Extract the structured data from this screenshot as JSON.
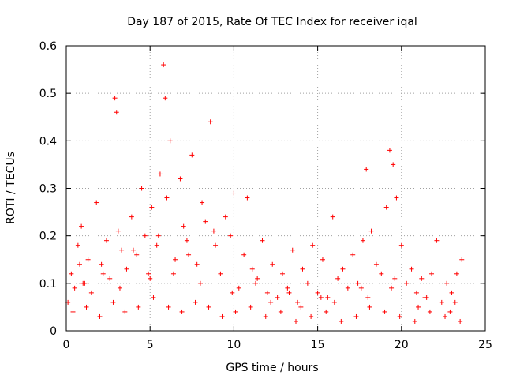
{
  "chart_data": {
    "type": "scatter",
    "title": "Day 187 of 2015, Rate Of TEC Index for receiver iqal",
    "xlabel": "GPS time / hours",
    "ylabel": "ROTI / TECUs",
    "xlim": [
      0,
      25
    ],
    "ylim": [
      0,
      0.6
    ],
    "xticks": [
      0,
      5,
      10,
      15,
      20,
      25
    ],
    "xtick_labels": [
      "0",
      "5",
      "10",
      "15",
      "20",
      "25"
    ],
    "yticks": [
      0,
      0.1,
      0.2,
      0.3,
      0.4,
      0.5,
      0.6
    ],
    "ytick_labels": [
      "0",
      "0.1",
      "0.2",
      "0.3",
      "0.4",
      "0.5",
      "0.6"
    ],
    "grid": true,
    "marker": "+",
    "color": "#ff0000",
    "series": [
      {
        "name": "ROTI",
        "x": [
          0.1,
          0.3,
          0.5,
          0.7,
          0.9,
          1.1,
          1.3,
          1.5,
          1.8,
          2.1,
          2.4,
          2.6,
          2.9,
          3.0,
          3.1,
          3.3,
          3.6,
          3.9,
          4.2,
          4.5,
          4.7,
          4.9,
          5.1,
          5.4,
          5.6,
          5.8,
          5.9,
          6.0,
          6.2,
          6.5,
          6.8,
          7.0,
          7.2,
          7.5,
          7.8,
          8.1,
          8.3,
          8.6,
          8.9,
          9.2,
          9.5,
          9.8,
          10.0,
          10.3,
          10.6,
          10.8,
          11.1,
          11.4,
          11.7,
          12.0,
          12.3,
          12.6,
          12.9,
          13.2,
          13.5,
          13.8,
          14.1,
          14.4,
          14.7,
          15.0,
          15.3,
          15.6,
          15.9,
          16.2,
          16.5,
          16.8,
          17.1,
          17.4,
          17.7,
          17.9,
          18.2,
          18.5,
          18.8,
          19.1,
          19.3,
          19.5,
          19.7,
          20.0,
          20.3,
          20.6,
          20.9,
          21.2,
          21.5,
          21.8,
          22.1,
          22.4,
          22.7,
          23.0,
          23.3,
          23.6,
          0.4,
          1.2,
          2.0,
          2.8,
          3.5,
          4.3,
          5.2,
          6.1,
          6.9,
          7.7,
          8.5,
          9.3,
          10.1,
          11.0,
          11.9,
          12.8,
          13.7,
          14.6,
          15.5,
          16.4,
          17.3,
          18.1,
          19.0,
          19.9,
          20.8,
          21.7,
          22.6,
          23.5,
          1.0,
          3.2,
          5.0,
          6.4,
          8.0,
          9.9,
          12.2,
          14.0,
          16.0,
          18.0,
          19.4,
          21.0,
          22.9,
          0.8,
          2.2,
          4.0,
          5.5,
          7.3,
          8.8,
          11.3,
          13.3,
          15.2,
          17.6,
          19.6,
          21.4,
          23.2
        ],
        "y": [
          0.06,
          0.12,
          0.09,
          0.18,
          0.22,
          0.1,
          0.15,
          0.08,
          0.27,
          0.14,
          0.19,
          0.11,
          0.49,
          0.46,
          0.21,
          0.17,
          0.13,
          0.24,
          0.16,
          0.3,
          0.2,
          0.12,
          0.26,
          0.18,
          0.33,
          0.56,
          0.49,
          0.28,
          0.4,
          0.15,
          0.32,
          0.22,
          0.19,
          0.37,
          0.14,
          0.27,
          0.23,
          0.44,
          0.18,
          0.12,
          0.24,
          0.2,
          0.29,
          0.09,
          0.16,
          0.28,
          0.13,
          0.11,
          0.19,
          0.08,
          0.14,
          0.07,
          0.12,
          0.09,
          0.17,
          0.06,
          0.13,
          0.1,
          0.18,
          0.08,
          0.15,
          0.07,
          0.24,
          0.11,
          0.13,
          0.09,
          0.16,
          0.1,
          0.19,
          0.34,
          0.21,
          0.14,
          0.12,
          0.26,
          0.38,
          0.35,
          0.28,
          0.18,
          0.1,
          0.13,
          0.08,
          0.11,
          0.07,
          0.12,
          0.19,
          0.06,
          0.1,
          0.08,
          0.12,
          0.15,
          0.04,
          0.05,
          0.03,
          0.06,
          0.04,
          0.05,
          0.07,
          0.05,
          0.04,
          0.06,
          0.05,
          0.03,
          0.04,
          0.05,
          0.03,
          0.04,
          0.02,
          0.03,
          0.04,
          0.02,
          0.03,
          0.05,
          0.04,
          0.03,
          0.02,
          0.04,
          0.03,
          0.02,
          0.1,
          0.09,
          0.11,
          0.12,
          0.1,
          0.08,
          0.06,
          0.05,
          0.06,
          0.07,
          0.09,
          0.05,
          0.04,
          0.14,
          0.12,
          0.17,
          0.2,
          0.16,
          0.21,
          0.1,
          0.08,
          0.07,
          0.09,
          0.11,
          0.07,
          0.06
        ]
      }
    ]
  }
}
